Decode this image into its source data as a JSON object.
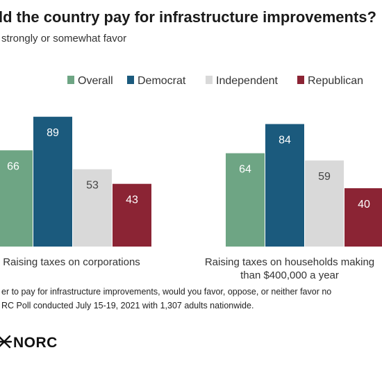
{
  "chart_data": {
    "type": "bar",
    "title": "ld the country pay for infrastructure improvements?",
    "subtitle": "strongly or somewhat favor",
    "categories": [
      [
        "Raising taxes on corporations"
      ],
      [
        "Raising taxes on households making",
        "than $400,000 a year"
      ]
    ],
    "series": [
      {
        "name": "Overall",
        "color": "#6ea584",
        "values": [
          66,
          64
        ]
      },
      {
        "name": "Democrat",
        "color": "#1b5a7d",
        "values": [
          89,
          84
        ]
      },
      {
        "name": "Independent",
        "color": "#d9d9d9",
        "values": [
          53,
          59
        ]
      },
      {
        "name": "Republican",
        "color": "#8b2434",
        "values": [
          43,
          40
        ]
      }
    ],
    "ylim": [
      0,
      100
    ],
    "legend": "top",
    "grid": false
  },
  "notes": [
    "er to pay for infrastructure improvements, would you favor, oppose, or neither favor no",
    "RC Poll conducted July 15-19, 2021 with 1,307 adults nationwide."
  ],
  "logo": {
    "text": "NORC",
    "icon": "norc-asterisk-icon"
  }
}
